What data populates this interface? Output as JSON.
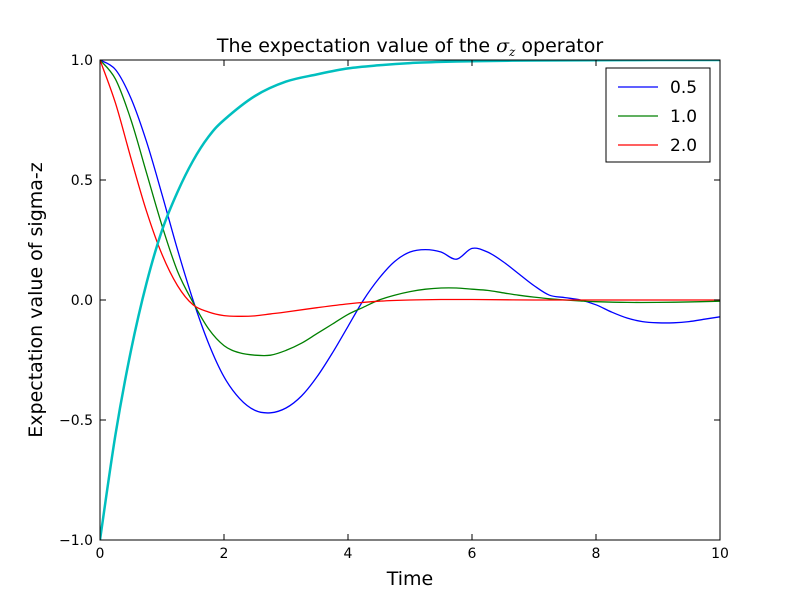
{
  "chart_data": {
    "type": "line",
    "title": "The expectation value of the σz operator",
    "title_parts": {
      "prefix": "The expectation value of the ",
      "math_main": "σ",
      "math_sub": "z",
      "suffix": " operator"
    },
    "xlabel": "Time",
    "ylabel": "Expectation value of sigma-z",
    "xlim": [
      0,
      10
    ],
    "ylim": [
      -1.0,
      1.0
    ],
    "xticks": [
      0,
      2,
      4,
      6,
      8,
      10
    ],
    "xtick_labels": [
      "0",
      "2",
      "4",
      "6",
      "8",
      "10"
    ],
    "yticks": [
      -1.0,
      -0.5,
      0.0,
      0.5,
      1.0
    ],
    "ytick_labels": [
      "−1.0",
      "−0.5",
      "0.0",
      "0.5",
      "1.0"
    ],
    "grid": false,
    "legend": {
      "position": "top-right",
      "entries": [
        "0.5",
        "1.0",
        "2.0"
      ]
    },
    "series": [
      {
        "name": "0.5",
        "color": "#0000ff",
        "x": [
          0,
          0.25,
          0.5,
          0.75,
          1.0,
          1.25,
          1.5,
          1.75,
          2.0,
          2.25,
          2.5,
          2.75,
          3.0,
          3.25,
          3.5,
          3.75,
          4.0,
          4.25,
          4.5,
          4.75,
          5.0,
          5.25,
          5.5,
          5.75,
          6.0,
          6.25,
          6.5,
          6.75,
          7.0,
          7.25,
          7.5,
          7.75,
          8.0,
          8.25,
          8.5,
          8.75,
          9.0,
          9.25,
          9.5,
          9.75,
          10.0
        ],
        "y": [
          1.0,
          0.96,
          0.84,
          0.66,
          0.44,
          0.21,
          0.0,
          -0.18,
          -0.32,
          -0.41,
          -0.46,
          -0.47,
          -0.45,
          -0.4,
          -0.32,
          -0.22,
          -0.11,
          0.0,
          0.09,
          0.16,
          0.2,
          0.21,
          0.2,
          0.17,
          0.215,
          0.2,
          0.16,
          0.11,
          0.06,
          0.02,
          0.01,
          0.0,
          -0.02,
          -0.05,
          -0.075,
          -0.09,
          -0.095,
          -0.095,
          -0.09,
          -0.08,
          -0.07
        ]
      },
      {
        "name": "1.0",
        "color": "#008000",
        "x": [
          0,
          0.25,
          0.5,
          0.75,
          1.0,
          1.25,
          1.5,
          1.75,
          2.0,
          2.25,
          2.5,
          2.75,
          3.0,
          3.25,
          3.5,
          3.75,
          4.0,
          4.25,
          4.5,
          4.75,
          5.0,
          5.25,
          5.5,
          5.75,
          6.0,
          6.25,
          6.5,
          6.75,
          7.0,
          7.25,
          7.5,
          7.75,
          8.0,
          8.5,
          9.0,
          9.5,
          10.0
        ],
        "y": [
          1.0,
          0.92,
          0.75,
          0.53,
          0.31,
          0.12,
          -0.01,
          -0.12,
          -0.19,
          -0.22,
          -0.23,
          -0.23,
          -0.21,
          -0.18,
          -0.14,
          -0.1,
          -0.06,
          -0.03,
          0.0,
          0.02,
          0.035,
          0.045,
          0.05,
          0.05,
          0.045,
          0.04,
          0.03,
          0.02,
          0.012,
          0.005,
          0.0,
          -0.004,
          -0.007,
          -0.01,
          -0.01,
          -0.008,
          -0.005
        ]
      },
      {
        "name": "2.0",
        "color": "#ff0000",
        "x": [
          0,
          0.25,
          0.5,
          0.75,
          1.0,
          1.25,
          1.5,
          1.75,
          2.0,
          2.25,
          2.5,
          2.75,
          3.0,
          3.5,
          4.0,
          4.5,
          5.0,
          5.5,
          6.0,
          7.0,
          8.0,
          9.0,
          10.0
        ],
        "y": [
          1.0,
          0.82,
          0.59,
          0.37,
          0.19,
          0.06,
          -0.02,
          -0.05,
          -0.065,
          -0.068,
          -0.066,
          -0.058,
          -0.05,
          -0.032,
          -0.016,
          -0.005,
          0.0,
          0.002,
          0.002,
          0.0,
          0.0,
          0.0,
          0.0
        ]
      },
      {
        "color": "#00bfbf",
        "x": [
          0,
          0.25,
          0.5,
          0.75,
          1.0,
          1.25,
          1.5,
          1.75,
          2.0,
          2.5,
          3.0,
          3.5,
          4.0,
          4.5,
          5.0,
          5.5,
          6.0,
          7.0,
          8.0,
          9.0,
          10.0
        ],
        "y": [
          -1.0,
          -0.56,
          -0.21,
          0.07,
          0.29,
          0.45,
          0.58,
          0.68,
          0.75,
          0.85,
          0.91,
          0.94,
          0.965,
          0.978,
          0.987,
          0.992,
          0.995,
          0.998,
          0.999,
          1.0,
          1.0
        ]
      }
    ]
  }
}
